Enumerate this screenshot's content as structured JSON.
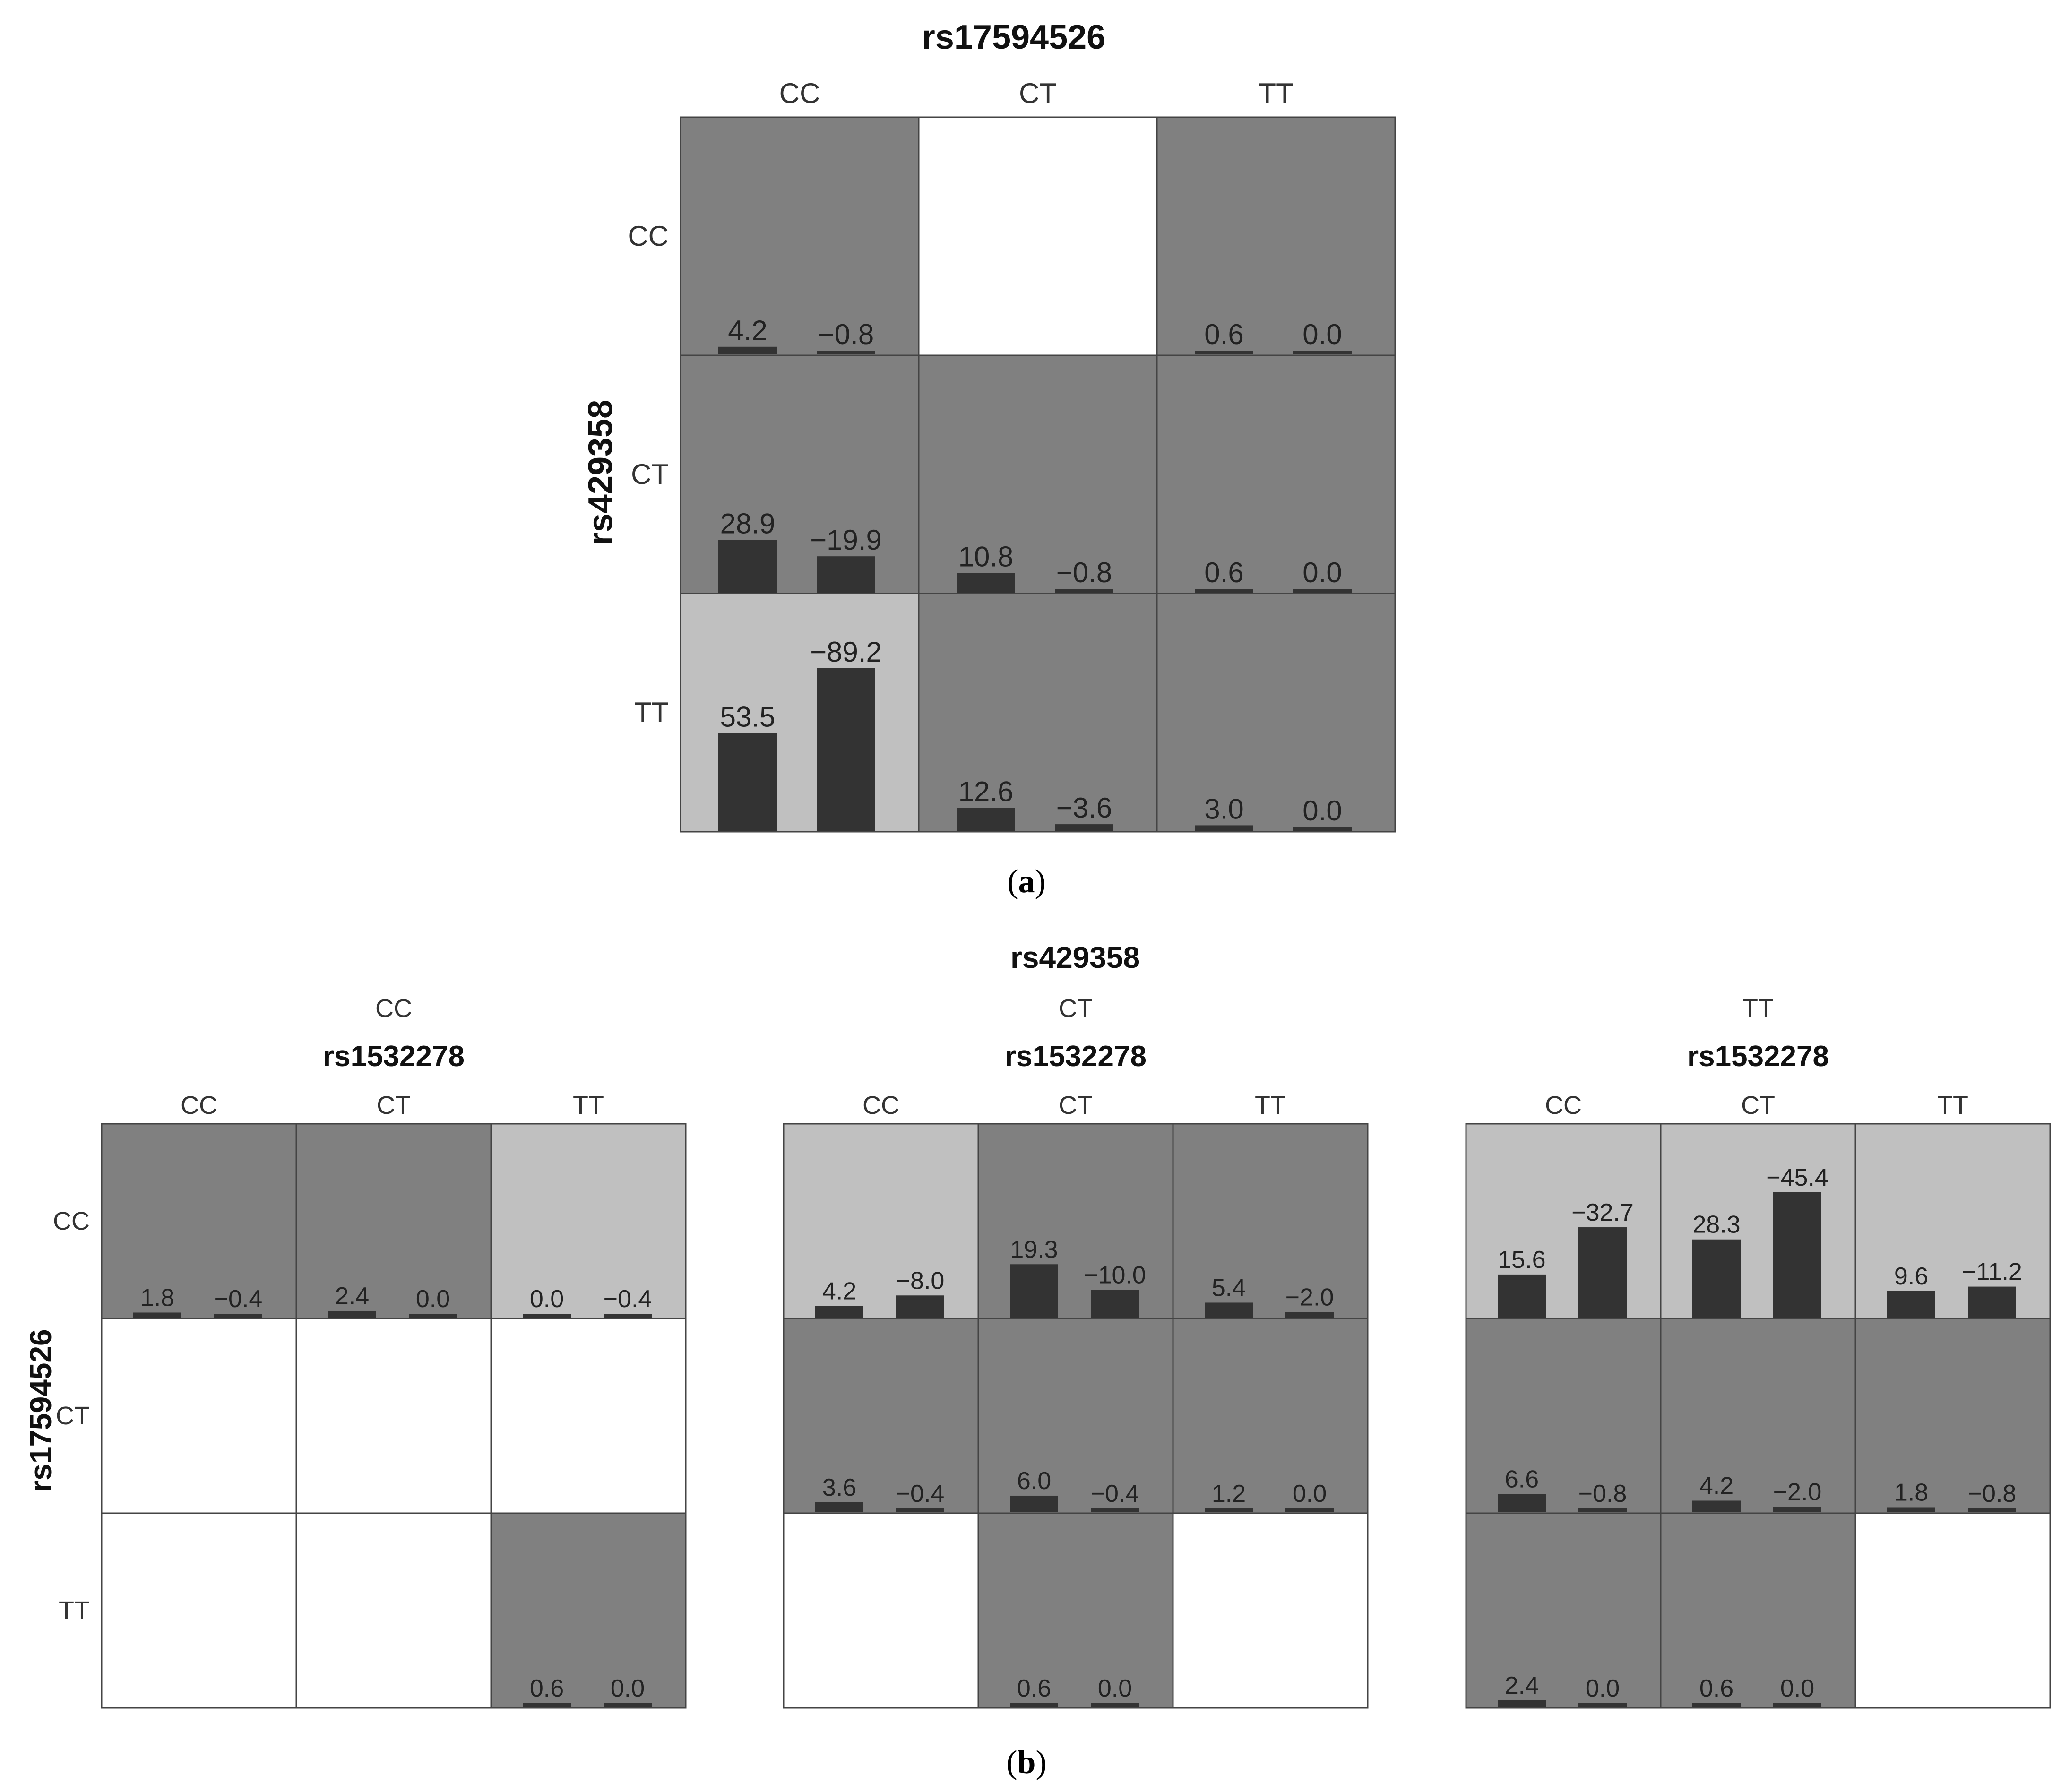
{
  "chart_data": [
    {
      "type": "bar",
      "id": "a",
      "title": "rs17594526",
      "ylabel": "rs429358",
      "col_labels": [
        "CC",
        "CT",
        "TT"
      ],
      "row_labels": [
        "CC",
        "CT",
        "TT"
      ],
      "ylim": [
        0,
        100
      ],
      "cells": [
        [
          {
            "shade": "dark",
            "values": [
              "4.2",
              "-0.8"
            ]
          },
          {
            "shade": "white",
            "values": []
          },
          {
            "shade": "dark",
            "values": [
              "0.6",
              "0.0"
            ]
          }
        ],
        [
          {
            "shade": "dark",
            "values": [
              "28.9",
              "-19.9"
            ]
          },
          {
            "shade": "dark",
            "values": [
              "10.8",
              "-0.8"
            ]
          },
          {
            "shade": "dark",
            "values": [
              "0.6",
              "0.0"
            ]
          }
        ],
        [
          {
            "shade": "light",
            "values": [
              "53.5",
              "-89.2"
            ]
          },
          {
            "shade": "dark",
            "values": [
              "12.6",
              "-3.6"
            ]
          },
          {
            "shade": "dark",
            "values": [
              "3.0",
              "0.0"
            ]
          }
        ]
      ],
      "caption": "a"
    },
    {
      "type": "bar",
      "id": "b",
      "title": "rs429358",
      "ylabel": "rs17594526",
      "caption": "b",
      "ylim": [
        0,
        50
      ],
      "panels": [
        {
          "label": "CC",
          "subtitle": "rs1532278",
          "col_labels": [
            "CC",
            "CT",
            "TT"
          ],
          "row_labels": [
            "CC",
            "CT",
            "TT"
          ],
          "cells": [
            [
              {
                "shade": "dark",
                "values": [
                  "1.8",
                  "-0.4"
                ]
              },
              {
                "shade": "dark",
                "values": [
                  "2.4",
                  "0.0"
                ]
              },
              {
                "shade": "light",
                "values": [
                  "0.0",
                  "-0.4"
                ]
              }
            ],
            [
              {
                "shade": "white",
                "values": []
              },
              {
                "shade": "white",
                "values": []
              },
              {
                "shade": "white",
                "values": []
              }
            ],
            [
              {
                "shade": "white",
                "values": []
              },
              {
                "shade": "white",
                "values": []
              },
              {
                "shade": "dark",
                "values": [
                  "0.6",
                  "0.0"
                ]
              }
            ]
          ]
        },
        {
          "label": "CT",
          "subtitle": "rs1532278",
          "col_labels": [
            "CC",
            "CT",
            "TT"
          ],
          "row_labels": [
            "CC",
            "CT",
            "TT"
          ],
          "cells": [
            [
              {
                "shade": "light",
                "values": [
                  "4.2",
                  "-8.0"
                ]
              },
              {
                "shade": "dark",
                "values": [
                  "19.3",
                  "-10.0"
                ]
              },
              {
                "shade": "dark",
                "values": [
                  "5.4",
                  "-2.0"
                ]
              }
            ],
            [
              {
                "shade": "dark",
                "values": [
                  "3.6",
                  "-0.4"
                ]
              },
              {
                "shade": "dark",
                "values": [
                  "6.0",
                  "-0.4"
                ]
              },
              {
                "shade": "dark",
                "values": [
                  "1.2",
                  "0.0"
                ]
              }
            ],
            [
              {
                "shade": "white",
                "values": []
              },
              {
                "shade": "dark",
                "values": [
                  "0.6",
                  "0.0"
                ]
              },
              {
                "shade": "white",
                "values": []
              }
            ]
          ]
        },
        {
          "label": "TT",
          "subtitle": "rs1532278",
          "col_labels": [
            "CC",
            "CT",
            "TT"
          ],
          "row_labels": [
            "CC",
            "CT",
            "TT"
          ],
          "cells": [
            [
              {
                "shade": "light",
                "values": [
                  "15.6",
                  "-32.7"
                ]
              },
              {
                "shade": "light",
                "values": [
                  "28.3",
                  "-45.4"
                ]
              },
              {
                "shade": "light",
                "values": [
                  "9.6",
                  "-11.2"
                ]
              }
            ],
            [
              {
                "shade": "dark",
                "values": [
                  "6.6",
                  "-0.8"
                ]
              },
              {
                "shade": "dark",
                "values": [
                  "4.2",
                  "-2.0"
                ]
              },
              {
                "shade": "dark",
                "values": [
                  "1.8",
                  "-0.8"
                ]
              }
            ],
            [
              {
                "shade": "dark",
                "values": [
                  "2.4",
                  "0.0"
                ]
              },
              {
                "shade": "dark",
                "values": [
                  "0.6",
                  "0.0"
                ]
              },
              {
                "shade": "white",
                "values": []
              }
            ]
          ]
        }
      ]
    }
  ],
  "colors": {
    "dark": "#808080",
    "light": "#c0c0c0",
    "white": "#ffffff",
    "bar": "#333333",
    "grid": "#444444"
  }
}
